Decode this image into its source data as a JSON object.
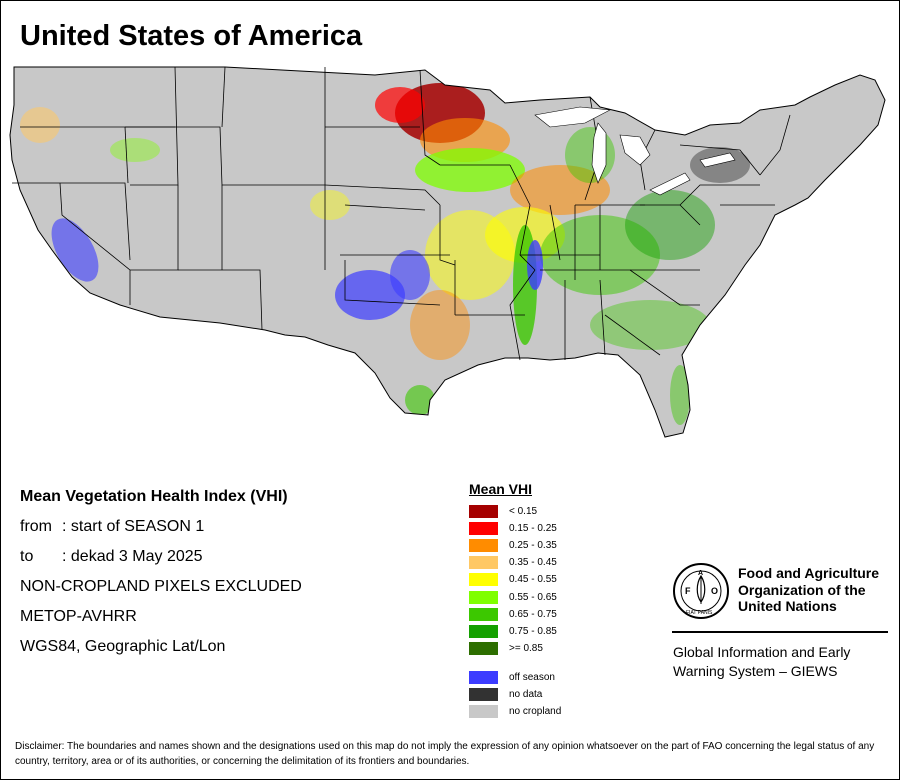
{
  "title": "United States of America",
  "info": {
    "index_name": "Mean Vegetation Health Index (VHI)",
    "from_label": "from",
    "from_value": ": start of SEASON 1",
    "to_label": "to",
    "to_value": ": dekad 3 May 2025",
    "mask_note": "NON-CROPLAND PIXELS EXCLUDED",
    "sensor": "METOP-AVHRR",
    "projection": "WGS84, Geographic Lat/Lon"
  },
  "legend": {
    "title": "Mean VHI",
    "classes": [
      {
        "label": "< 0.15",
        "color": "#a50000"
      },
      {
        "label": "0.15 - 0.25",
        "color": "#ff0000"
      },
      {
        "label": "0.25 - 0.35",
        "color": "#ff8c00"
      },
      {
        "label": "0.35 - 0.45",
        "color": "#ffc864"
      },
      {
        "label": "0.45 - 0.55",
        "color": "#ffff00"
      },
      {
        "label": "0.55 - 0.65",
        "color": "#7fff00"
      },
      {
        "label": "0.65 - 0.75",
        "color": "#3cc800"
      },
      {
        "label": "0.75 - 0.85",
        "color": "#14a000"
      },
      {
        "label": ">= 0.85",
        "color": "#2d6e00"
      }
    ],
    "special": [
      {
        "label": "off season",
        "color": "#3c3cff"
      },
      {
        "label": "no data",
        "color": "#323232"
      },
      {
        "label": "no cropland",
        "color": "#c8c8c8"
      }
    ]
  },
  "organization": {
    "logo_text": "FAO",
    "logo_ring_text": "FIAT PANIS",
    "name_line1": "Food and Agriculture",
    "name_line2": "Organization of the",
    "name_line3": "United Nations",
    "program_line1": "Global Information and Early",
    "program_line2": "Warning System – GIEWS"
  },
  "disclaimer": "Disclaimer: The boundaries and names shown and the designations used on this map do not imply the expression of any opinion whatsoever on the part of FAO concerning the legal status of any country, territory, area or of its authorities, or concerning the delimitation of its frontiers and boundaries.",
  "map": {
    "land_color": "#c8c8c8",
    "border_color": "#000000"
  }
}
